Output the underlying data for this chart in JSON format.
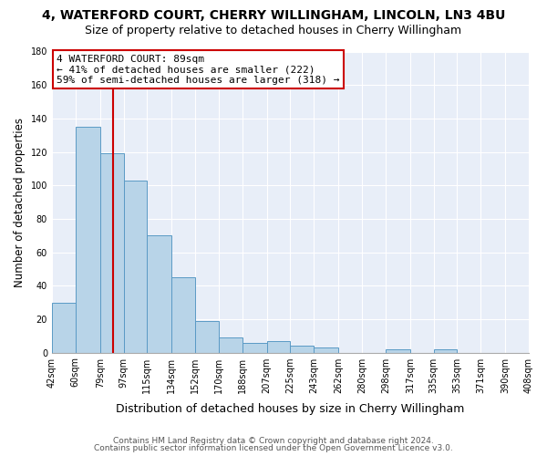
{
  "title": "4, WATERFORD COURT, CHERRY WILLINGHAM, LINCOLN, LN3 4BU",
  "subtitle": "Size of property relative to detached houses in Cherry Willingham",
  "xlabel": "Distribution of detached houses by size in Cherry Willingham",
  "ylabel": "Number of detached properties",
  "all_values": [
    30,
    135,
    119,
    103,
    70,
    45,
    19,
    9,
    6,
    7,
    4,
    3,
    0,
    0,
    2,
    0,
    2,
    0,
    0,
    0
  ],
  "all_edges": [
    42,
    60,
    79,
    97,
    115,
    134,
    152,
    170,
    188,
    207,
    225,
    243,
    262,
    280,
    298,
    317,
    335,
    353,
    371,
    390,
    408
  ],
  "bar_color": "#b8d4e8",
  "bar_edge_color": "#5a9ac5",
  "ylim": [
    0,
    180
  ],
  "yticks": [
    0,
    20,
    40,
    60,
    80,
    100,
    120,
    140,
    160,
    180
  ],
  "property_line_x": 89,
  "property_line_color": "#cc0000",
  "annotation_title": "4 WATERFORD COURT: 89sqm",
  "annotation_line1": "← 41% of detached houses are smaller (222)",
  "annotation_line2": "59% of semi-detached houses are larger (318) →",
  "annotation_box_color": "#cc0000",
  "footer1": "Contains HM Land Registry data © Crown copyright and database right 2024.",
  "footer2": "Contains public sector information licensed under the Open Government Licence v3.0.",
  "background_color": "#ffffff",
  "plot_background": "#e8eef8",
  "grid_color": "#ffffff",
  "title_fontsize": 10,
  "subtitle_fontsize": 9,
  "xlabel_fontsize": 9,
  "ylabel_fontsize": 8.5,
  "tick_fontsize": 7,
  "footer_fontsize": 6.5
}
